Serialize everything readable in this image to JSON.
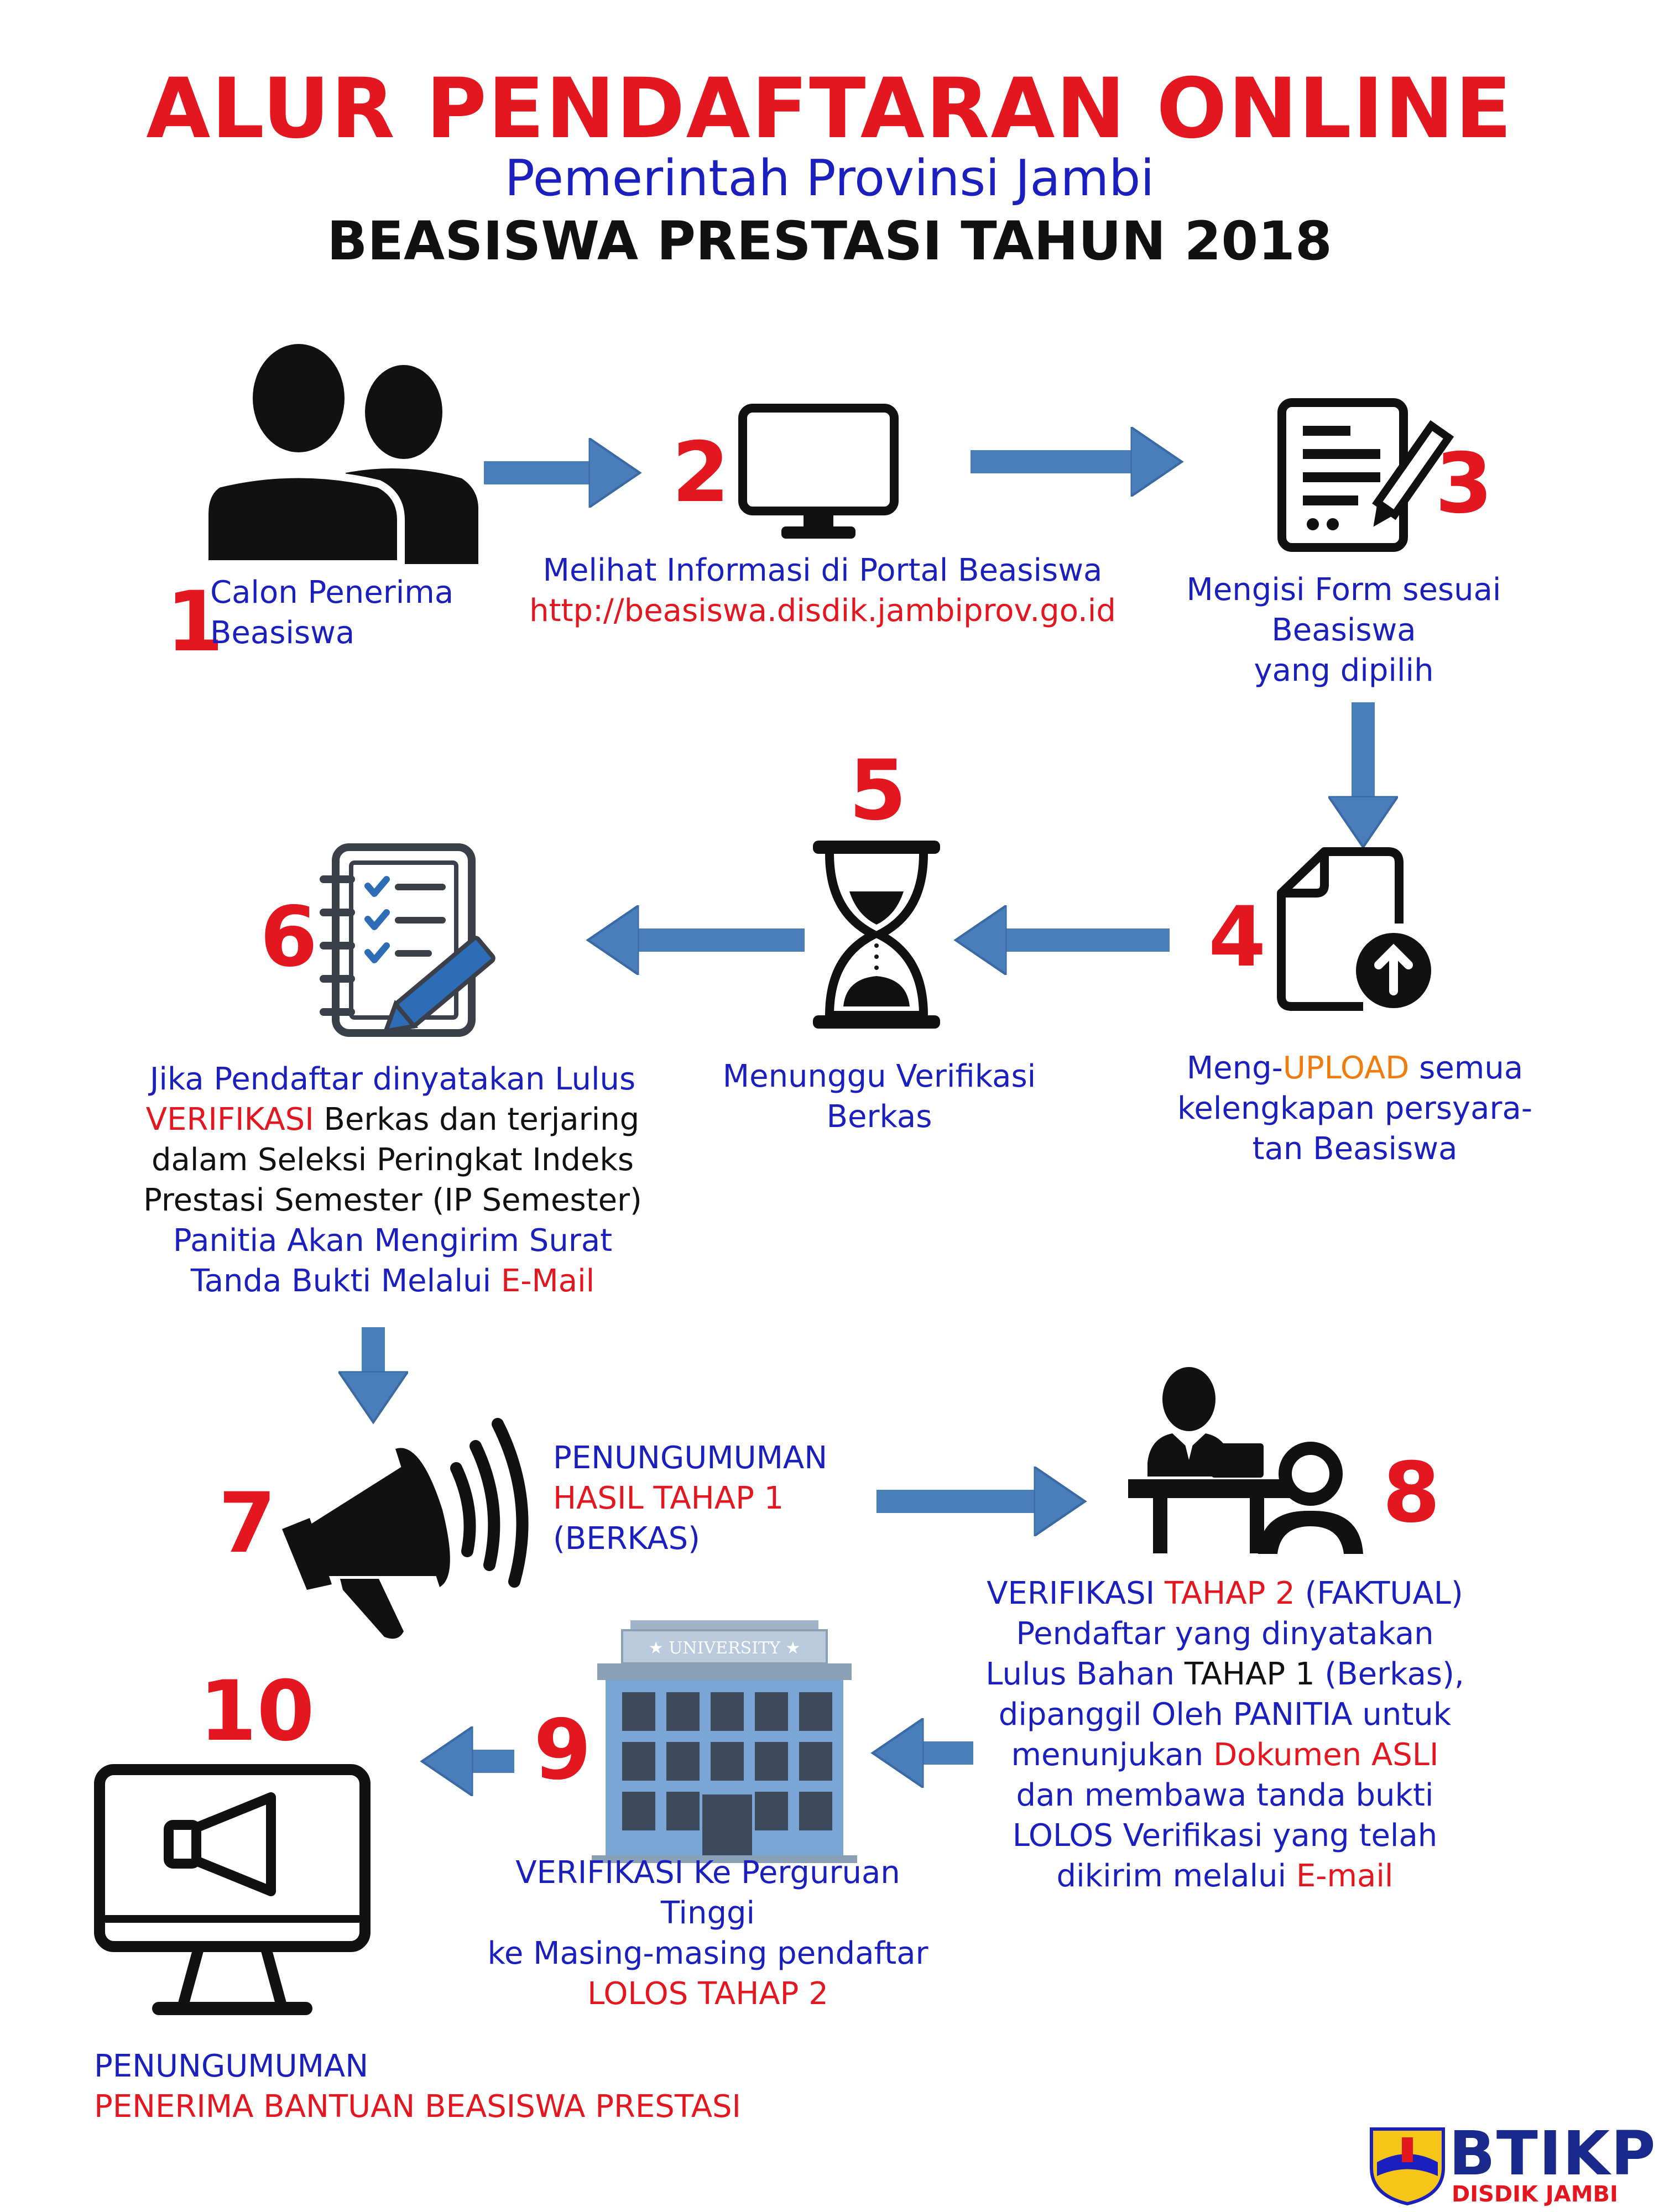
{
  "header": {
    "title": "ALUR PENDAFTARAN ONLINE",
    "subtitle": "Pemerintah Provinsi Jambi",
    "program": "BEASISWA PRESTASI TAHUN 2018"
  },
  "steps": [
    {
      "num": "1",
      "icon": "people-icon",
      "lines": [
        "Calon Penerima",
        "Beasiswa"
      ]
    },
    {
      "num": "2",
      "icon": "monitor-icon",
      "lines": [
        "Melihat Informasi di Portal Beasiswa"
      ],
      "url": "http://beasiswa.disdik.jambiprov.go.id"
    },
    {
      "num": "3",
      "icon": "form-pen-icon",
      "lines": [
        "Mengisi Form sesuai",
        "Beasiswa",
        "yang dipilih"
      ]
    },
    {
      "num": "4",
      "icon": "file-upload-icon",
      "prefix": "Meng-",
      "highlight": "UPLOAD",
      "suffix": " semua",
      "lines": [
        "kelengkapan persyara-",
        "tan Beasiswa"
      ]
    },
    {
      "num": "5",
      "icon": "hourglass-icon",
      "lines": [
        "Menunggu Verifikasi",
        "Berkas"
      ]
    },
    {
      "num": "6",
      "icon": "checklist-icon",
      "l1": "Jika Pendaftar dinyatakan Lulus",
      "l2a": "VERIFIKASI",
      "l2b": " Berkas dan terjaring",
      "l3": "dalam Seleksi Peringkat Indeks",
      "l4": "Prestasi Semester (IP Semester)",
      "l5": "Panitia Akan Mengirim Surat",
      "l6a": "Tanda Bukti Melalui ",
      "l6b": "E-Mail"
    },
    {
      "num": "7",
      "icon": "megaphone-icon",
      "l1": "PENUNGUMUMAN",
      "l2": "HASIL TAHAP 1",
      "l3": "(BERKAS)"
    },
    {
      "num": "8",
      "icon": "interview-desk-icon",
      "l1a": "VERIFIKASI ",
      "l1b": "TAHAP 2",
      "l1c": " (FAKTUAL)",
      "l2": "Pendaftar yang dinyatakan",
      "l3a": "Lulus Bahan ",
      "l3b": "TAHAP 1",
      "l3c": " (Berkas),",
      "l4": "dipanggil Oleh PANITIA untuk",
      "l5a": "menunjukan ",
      "l5b": "Dokumen ASLI",
      "l6": "dan membawa tanda bukti",
      "l7": "LOLOS Verifikasi yang telah",
      "l8a": "dikirim melalui ",
      "l8b": "E-mail"
    },
    {
      "num": "9",
      "icon": "university-icon",
      "building_label": "★ UNIVERSITY ★",
      "l1": "VERIFIKASI Ke Perguruan Tinggi",
      "l2": "ke Masing-masing pendaftar",
      "l3": "LOLOS TAHAP 2"
    },
    {
      "num": "10",
      "icon": "monitor-announcement-icon",
      "l1": "PENUNGUMUMAN",
      "l2": "PENERIMA BANTUAN BEASISWA PRESTASI"
    }
  ],
  "logo": {
    "name": "BTIKP",
    "tagline": "DISDIK JAMBI"
  },
  "colors": {
    "red": "#e4161f",
    "blue": "#1a1fbd",
    "arrow": "#4a7ebb",
    "orange": "#f07b0f"
  }
}
